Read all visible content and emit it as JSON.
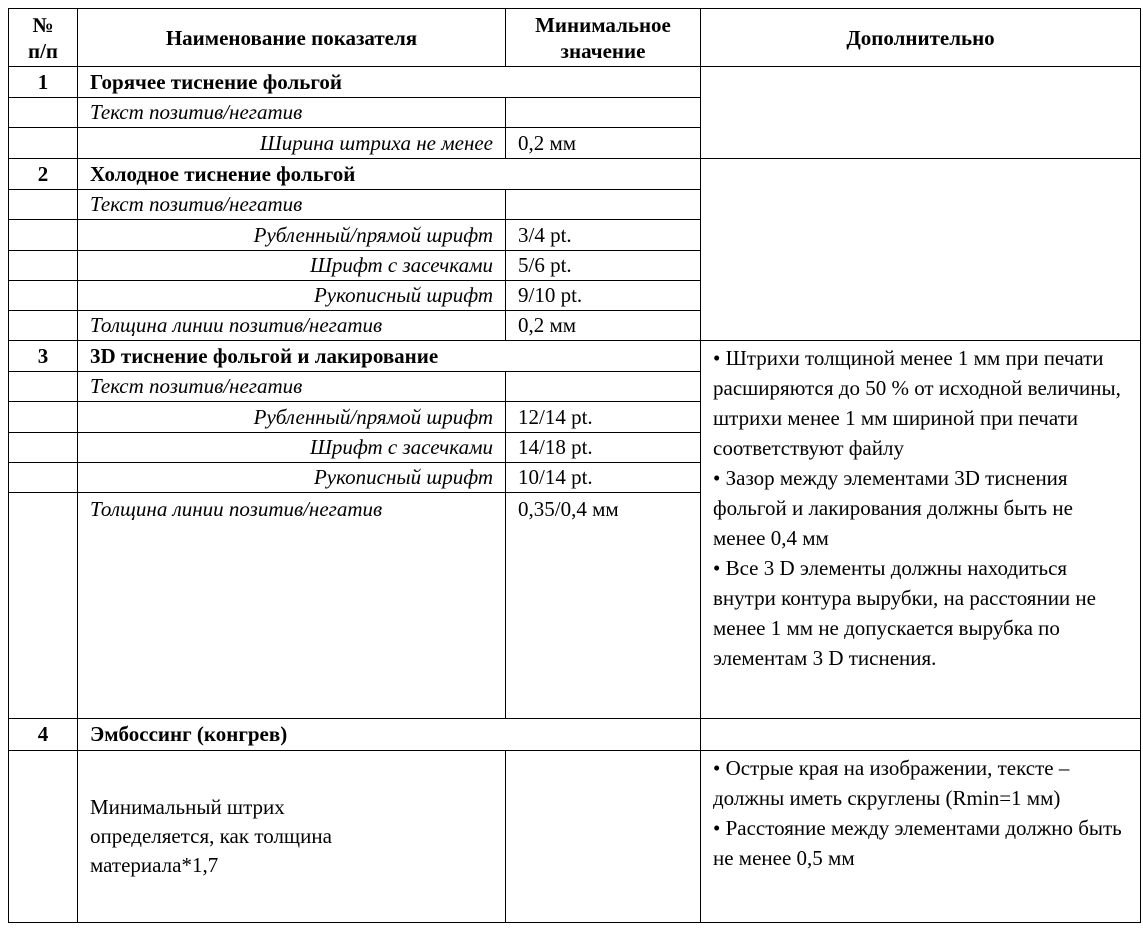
{
  "header": {
    "num": "№ п/п",
    "name": "Наименование показателя",
    "min": "Минимальное значение",
    "extra": "Дополнительно"
  },
  "s1": {
    "num": "1",
    "title": "Горячее тиснение фольгой",
    "r1": "Текст позитив/негатив",
    "r2": "Ширина штриха не менее",
    "v2": "0,2 мм"
  },
  "s2": {
    "num": "2",
    "title": "Холодное тиснение фольгой",
    "r1": "Текст позитив/негатив",
    "r2": "Рубленный/прямой шрифт",
    "v2": "3/4 pt.",
    "r3": "Шрифт с засечками",
    "v3": "5/6 pt.",
    "r4": "Рукописный шрифт",
    "v4": "9/10 pt.",
    "r5": "Толщина линии позитив/негатив",
    "v5": "0,2 мм"
  },
  "s3": {
    "num": "3",
    "title": "3D тиснение фольгой и лакирование",
    "r1": "Текст позитив/негатив",
    "r2": "Рубленный/прямой шрифт",
    "v2": "12/14 pt.",
    "r3": "Шрифт с засечками",
    "v3": "14/18 pt.",
    "r4": "Рукописный шрифт",
    "v4": "10/14 pt.",
    "r5": "Толщина линии позитив/негатив",
    "v5": "0,35/0,4 мм",
    "notes": [
      "• Штрихи толщиной менее 1 мм при печати расширяются до 50 % от исходной величины, штрихи менее 1 мм шириной при печати соответствуют файлу",
      "• Зазор между элементами 3D тиснения фольгой и лакирования должны быть не менее 0,4 мм",
      "• Все 3 D элементы должны находиться внутри контура вырубки, на расстоянии не менее 1 мм не допускается вырубка по элементам 3 D тиснения."
    ]
  },
  "s4": {
    "num": "4",
    "title": "Эмбоссинг (конгрев)",
    "r1": "Минимальный штрих определяется, как толщина материала*1,7",
    "notes": [
      "• Острые края на изображении, тексте – должны иметь скруглены (Rmin=1 мм)",
      "• Расстояние между элементами должно быть не менее 0,5 мм"
    ]
  }
}
